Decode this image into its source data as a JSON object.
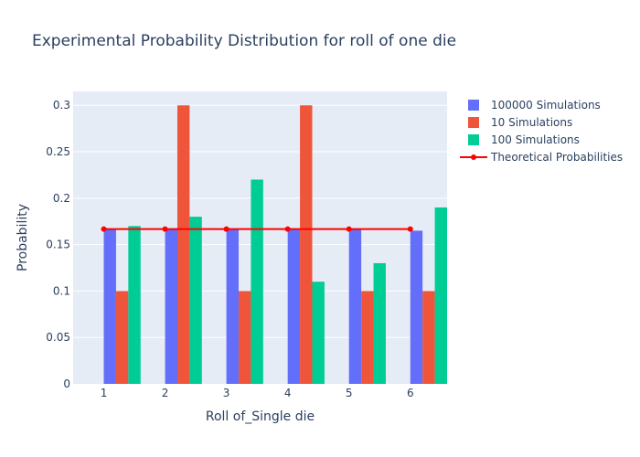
{
  "chart_data": {
    "type": "bar",
    "title": "Experimental Probability Distribution for roll of one die",
    "xlabel": "Roll of_Single die",
    "ylabel": "Probability",
    "categories": [
      1,
      2,
      3,
      4,
      5,
      6
    ],
    "x_tick_labels": [
      "1",
      "2",
      "3",
      "4",
      "5",
      "6"
    ],
    "ylim": [
      0,
      0.315
    ],
    "y_ticks": [
      0,
      0.05,
      0.1,
      0.15,
      0.2,
      0.25,
      0.3
    ],
    "y_tick_labels": [
      "0",
      "0.05",
      "0.1",
      "0.15",
      "0.2",
      "0.25",
      "0.3"
    ],
    "grid": true,
    "legend_position": "right",
    "background_color": "#e5ecf6",
    "series": [
      {
        "name": "100000 Simulations",
        "type": "bar",
        "color": "#636efa",
        "values": [
          0.167,
          0.167,
          0.167,
          0.167,
          0.167,
          0.165
        ]
      },
      {
        "name": "10 Simulations",
        "type": "bar",
        "color": "#ef553b",
        "values": [
          0.1,
          0.3,
          0.1,
          0.3,
          0.1,
          0.1
        ]
      },
      {
        "name": "100 Simulations",
        "type": "bar",
        "color": "#00cc96",
        "values": [
          0.17,
          0.18,
          0.22,
          0.11,
          0.13,
          0.19
        ]
      },
      {
        "name": "Theoretical Probabilities",
        "type": "line",
        "color": "#ff0000",
        "values": [
          0.1667,
          0.1667,
          0.1667,
          0.1667,
          0.1667,
          0.1667
        ]
      }
    ]
  }
}
